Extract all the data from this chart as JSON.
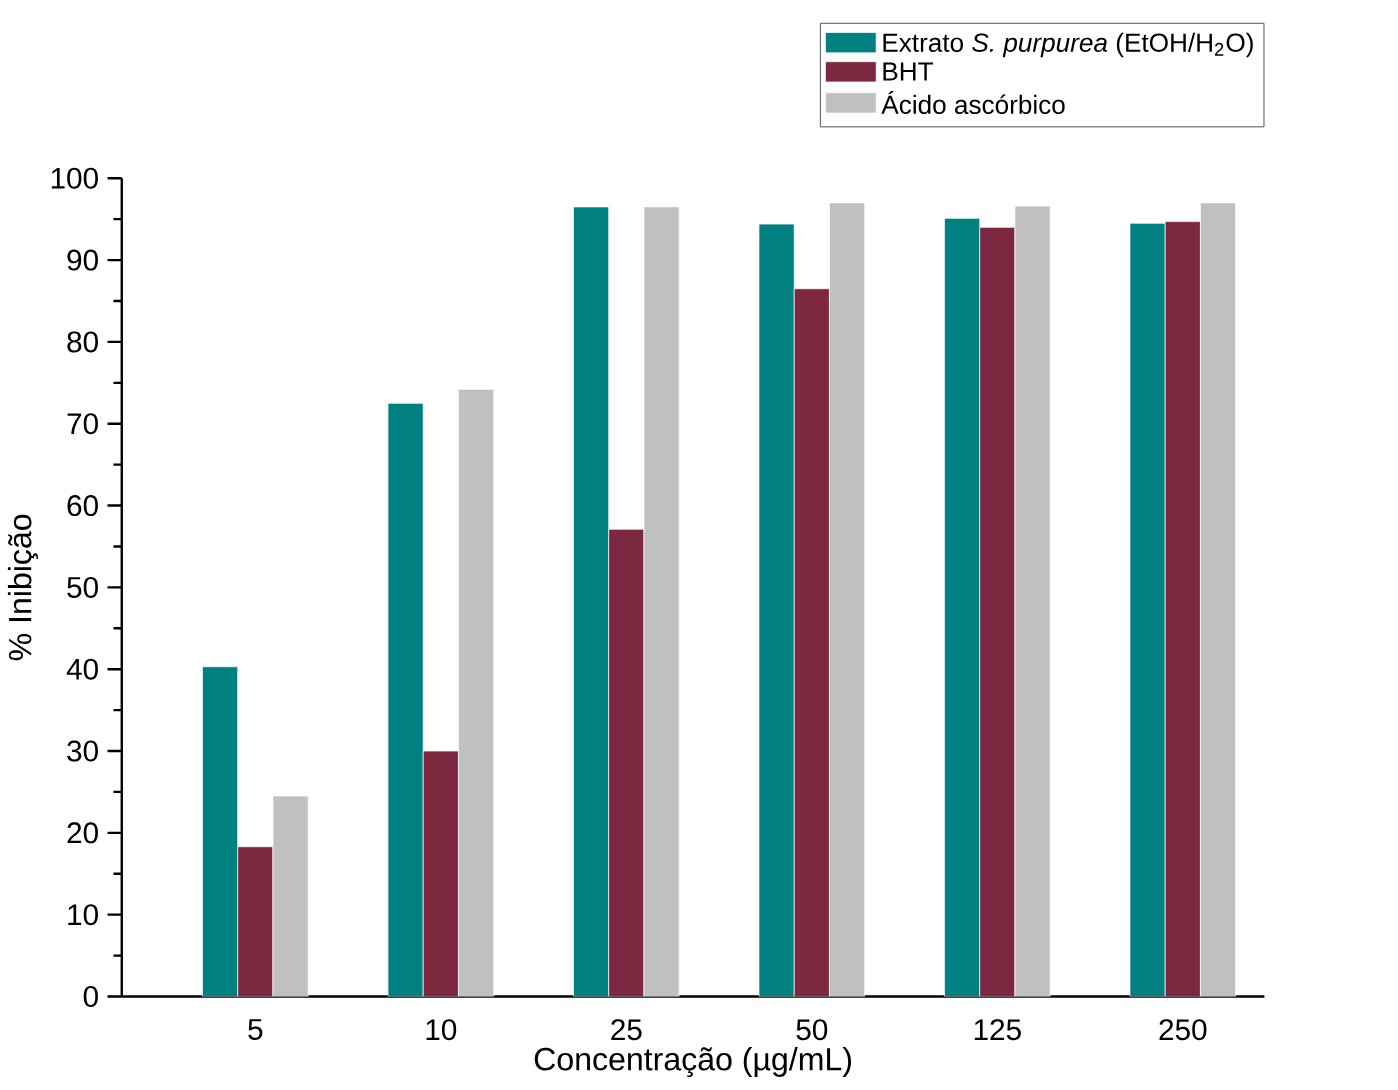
{
  "chart_data": {
    "type": "bar",
    "xlabel": "Concentração (µg/mL)",
    "ylabel": "% Inibição",
    "categories": [
      "5",
      "10",
      "25",
      "50",
      "125",
      "250"
    ],
    "series": [
      {
        "name": "Extrato *S. purpurea* (EtOH/H$_{2}$O)",
        "color": "#008080",
        "values": [
          40.3,
          72.5,
          96.5,
          94.4,
          95.1,
          94.5
        ]
      },
      {
        "name": "BHT",
        "color": "#7b2840",
        "values": [
          18.3,
          30.0,
          57.1,
          86.5,
          94.0,
          94.7
        ]
      },
      {
        "name": "Ácido ascórbico",
        "color": "#c0c0c0",
        "values": [
          24.5,
          74.2,
          96.5,
          97.0,
          96.6,
          97.0
        ]
      }
    ],
    "ylim": [
      0,
      100
    ],
    "yticks": [
      0,
      10,
      20,
      30,
      40,
      50,
      60,
      70,
      80,
      90,
      100
    ],
    "grid": false,
    "legend": "top right"
  }
}
